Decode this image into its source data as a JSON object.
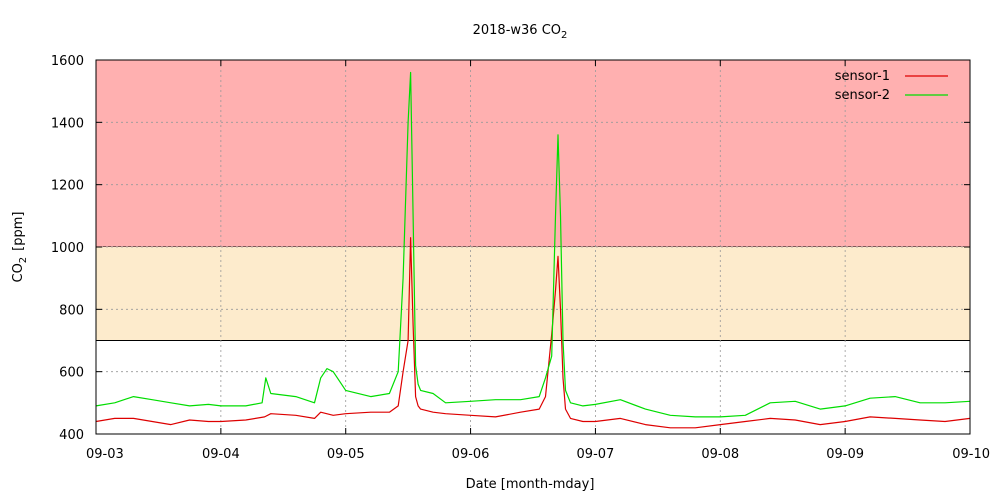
{
  "chart_data": {
    "type": "line",
    "title": "2018-w36 CO",
    "title_sub": "2",
    "xlabel": "Date [month-mday]",
    "ylabel_main": "CO",
    "ylabel_sub": "2",
    "ylabel_unit": "[ppm]",
    "xlim": [
      "09-03",
      "09-10"
    ],
    "ylim": [
      400,
      1600
    ],
    "x_ticks": [
      "09-03",
      "09-04",
      "09-05",
      "09-06",
      "09-07",
      "09-08",
      "09-09",
      "09-10"
    ],
    "y_ticks": [
      "400",
      "600",
      "800",
      "1000",
      "1200",
      "1400",
      "1600"
    ],
    "grid": true,
    "legend_position": "top-right",
    "bands": [
      {
        "from": 1000,
        "to": 1600,
        "color": "#ffb0b0"
      },
      {
        "from": 700,
        "to": 1000,
        "color": "#fdebcc"
      }
    ],
    "x_unit_note": "x values are days since 09-03",
    "series": [
      {
        "name": "sensor-1",
        "color": "#dd0000",
        "x": [
          0,
          0.15,
          0.3,
          0.45,
          0.6,
          0.75,
          0.9,
          1.0,
          1.2,
          1.35,
          1.4,
          1.6,
          1.75,
          1.8,
          1.9,
          2.0,
          2.2,
          2.35,
          2.42,
          2.46,
          2.5,
          2.52,
          2.54,
          2.56,
          2.58,
          2.6,
          2.7,
          2.8,
          3.0,
          3.2,
          3.4,
          3.55,
          3.6,
          3.65,
          3.68,
          3.7,
          3.72,
          3.74,
          3.76,
          3.8,
          3.9,
          4.0,
          4.2,
          4.4,
          4.6,
          4.8,
          5.0,
          5.2,
          5.4,
          5.6,
          5.8,
          6.0,
          6.2,
          6.4,
          6.6,
          6.8,
          7.0
        ],
        "y": [
          440,
          450,
          450,
          440,
          430,
          445,
          440,
          440,
          445,
          455,
          465,
          460,
          450,
          470,
          460,
          465,
          470,
          470,
          490,
          600,
          700,
          1030,
          750,
          520,
          490,
          480,
          470,
          465,
          460,
          455,
          470,
          480,
          520,
          720,
          860,
          970,
          800,
          580,
          480,
          450,
          440,
          440,
          450,
          430,
          420,
          420,
          430,
          440,
          450,
          445,
          430,
          440,
          455,
          450,
          445,
          440,
          450
        ]
      },
      {
        "name": "sensor-2",
        "color": "#00dd00",
        "x": [
          0,
          0.15,
          0.3,
          0.45,
          0.6,
          0.75,
          0.9,
          1.0,
          1.2,
          1.33,
          1.36,
          1.4,
          1.6,
          1.75,
          1.8,
          1.85,
          1.9,
          2.0,
          2.2,
          2.35,
          2.42,
          2.46,
          2.5,
          2.52,
          2.54,
          2.56,
          2.58,
          2.6,
          2.7,
          2.8,
          3.0,
          3.2,
          3.4,
          3.55,
          3.6,
          3.65,
          3.68,
          3.7,
          3.72,
          3.74,
          3.76,
          3.8,
          3.9,
          4.0,
          4.2,
          4.4,
          4.6,
          4.8,
          5.0,
          5.2,
          5.4,
          5.6,
          5.8,
          6.0,
          6.2,
          6.4,
          6.6,
          6.8,
          7.0
        ],
        "y": [
          490,
          500,
          520,
          510,
          500,
          490,
          495,
          490,
          490,
          500,
          580,
          530,
          520,
          500,
          580,
          610,
          600,
          540,
          520,
          530,
          600,
          900,
          1400,
          1560,
          1100,
          620,
          560,
          540,
          530,
          500,
          505,
          510,
          510,
          520,
          580,
          650,
          1100,
          1360,
          1100,
          700,
          540,
          500,
          490,
          495,
          510,
          480,
          460,
          455,
          455,
          460,
          500,
          505,
          480,
          490,
          515,
          520,
          500,
          500,
          505
        ]
      }
    ]
  }
}
